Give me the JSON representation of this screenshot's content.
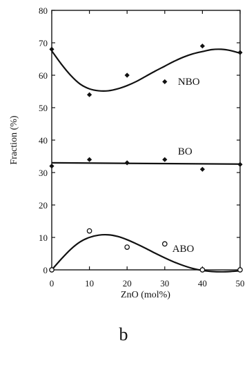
{
  "chart_data": {
    "type": "scatter",
    "xlabel": "ZnO  (mol%)",
    "ylabel": "Fraction (%)",
    "xlim": [
      0,
      50
    ],
    "ylim": [
      0,
      80
    ],
    "x_ticks": [
      "0",
      "10",
      "20",
      "30",
      "40",
      "50"
    ],
    "y_ticks": [
      "0",
      "10",
      "20",
      "30",
      "40",
      "50",
      "60",
      "70",
      "80"
    ],
    "grid": false,
    "series": [
      {
        "name": "NBO",
        "marker": "filled-diamond",
        "x": [
          0,
          10,
          20,
          30,
          40,
          50
        ],
        "y": [
          68,
          54,
          60,
          58,
          69,
          67
        ],
        "fit_curve": {
          "x": [
            0,
            2.5,
            5,
            7.5,
            10,
            12.5,
            15,
            17.5,
            20,
            22.5,
            25,
            27.5,
            30,
            32.5,
            35,
            37.5,
            40,
            42.5,
            45,
            47.5,
            50
          ],
          "y": [
            67.5,
            63.5,
            60,
            57.3,
            55.8,
            55.2,
            55.2,
            55.8,
            56.8,
            58.1,
            59.7,
            61.3,
            62.8,
            64.3,
            65.6,
            66.6,
            67.3,
            67.9,
            68.0,
            67.6,
            66.8
          ]
        }
      },
      {
        "name": "BO",
        "marker": "filled-diamond",
        "x": [
          0,
          10,
          20,
          30,
          40,
          50
        ],
        "y": [
          32,
          34,
          33,
          34,
          31,
          32.5
        ],
        "fit_curve": {
          "x": [
            0,
            50
          ],
          "y": [
            33,
            32.6
          ]
        }
      },
      {
        "name": "ABO",
        "marker": "open-circle",
        "x": [
          0,
          10,
          20,
          30,
          40,
          50
        ],
        "y": [
          0,
          12,
          7,
          8,
          0,
          0
        ],
        "fit_curve": {
          "x": [
            0,
            2.5,
            5,
            7.5,
            10,
            12.5,
            15,
            17.5,
            20,
            22.5,
            25,
            27.5,
            30,
            32.5,
            35,
            37.5,
            40,
            42.5,
            45,
            47.5,
            50
          ],
          "y": [
            0,
            3.3,
            6.3,
            8.6,
            10.0,
            10.7,
            10.8,
            10.3,
            9.3,
            8.0,
            6.6,
            5.1,
            3.7,
            2.4,
            1.3,
            0.4,
            -0.2,
            -0.5,
            -0.6,
            -0.5,
            -0.3
          ]
        }
      }
    ]
  },
  "panel_label": "b"
}
